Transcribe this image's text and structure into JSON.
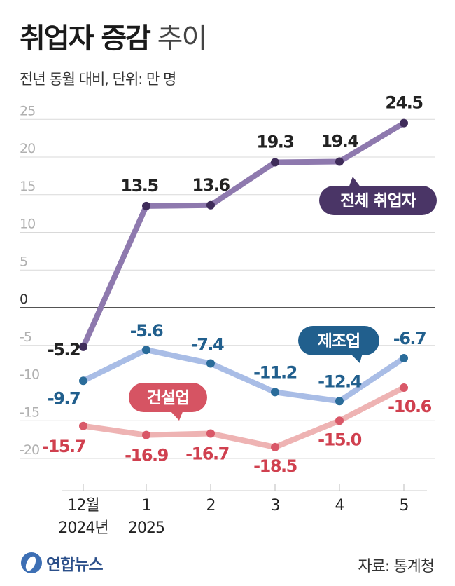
{
  "header": {
    "title_bold": "취업자 증감",
    "title_light": "추이",
    "subtitle": "전년 동월 대비, 단위: 만 명"
  },
  "footer": {
    "logo_text": "연합뉴스",
    "source": "자료: 통계청"
  },
  "colors": {
    "total": "#8e79ae",
    "total_label_bg": "#4a3566",
    "total_marker": "#3f2c5a",
    "manufacturing": "#a9bde6",
    "manufacturing_label_bg": "#215f8d",
    "manufacturing_marker": "#2a6c9a",
    "manufacturing_text": "#215f8d",
    "construction": "#eeb3b3",
    "construction_label_bg": "#d65463",
    "construction_marker": "#d95868",
    "construction_text": "#d0404f"
  },
  "chart_data": {
    "type": "line",
    "categories": [
      "12월|2024년",
      "1|2025",
      "2",
      "3",
      "4",
      "5"
    ],
    "ylim": [
      -25,
      27
    ],
    "yticks": [
      25,
      20,
      15,
      10,
      5,
      0,
      -5,
      -10,
      -15,
      -20
    ],
    "grid": true,
    "series": [
      {
        "name": "전체 취업자",
        "key": "total",
        "values": [
          -5.2,
          13.5,
          13.6,
          19.3,
          19.4,
          24.5
        ],
        "labels": [
          "-5.2",
          "13.5",
          "13.6",
          "19.3",
          "19.4",
          "24.5"
        ]
      },
      {
        "name": "제조업",
        "key": "manufacturing",
        "values": [
          -9.7,
          -5.6,
          -7.4,
          -11.2,
          -12.4,
          -6.7
        ],
        "labels": [
          "-9.7",
          "-5.6",
          "-7.4",
          "-11.2",
          "-12.4",
          "-6.7"
        ]
      },
      {
        "name": "건설업",
        "key": "construction",
        "values": [
          -15.7,
          -16.9,
          -16.7,
          -18.5,
          -15.0,
          -10.6
        ],
        "labels": [
          "-15.7",
          "-16.9",
          "-16.7",
          "-18.5",
          "-15.0",
          "-10.6"
        ]
      }
    ]
  }
}
